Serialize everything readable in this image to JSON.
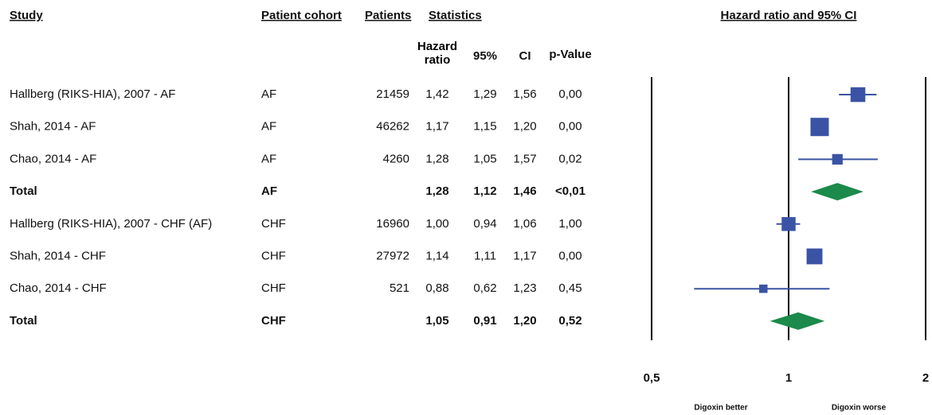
{
  "chart_data": {
    "type": "forest",
    "columns": [
      "Study",
      "Patient cohort",
      "Patients",
      "Statistics"
    ],
    "subheaders": [
      "Hazard ratio",
      "95%",
      "CI",
      "p-Value"
    ],
    "plot_title": "Hazard ratio and 95% CI",
    "footer_labels": [
      "Digoxin better",
      "Digoxin worse"
    ],
    "studies": [
      "Hallberg (RIKS-HIA), 2007 - AF",
      "Shah, 2014 - AF",
      "Chao, 2014 - AF",
      "Total",
      "Hallberg (RIKS-HIA), 2007 - CHF (AF)",
      "Shah, 2014 - CHF",
      "Chao, 2014 - CHF",
      "Total"
    ],
    "cohorts": [
      "AF",
      "AF",
      "AF",
      "AF",
      "CHF",
      "CHF",
      "CHF",
      "CHF"
    ],
    "patients": [
      21459,
      46262,
      4260,
      null,
      16960,
      27972,
      521,
      null
    ],
    "hazard_ratio": {
      "values": [
        1.42,
        1.17,
        1.28,
        1.28,
        1.0,
        1.14,
        0.88,
        1.05
      ],
      "value_labels": [
        "1,42",
        "1,17",
        "1,28",
        "1,28",
        "1,00",
        "1,14",
        "0,88",
        "1,05"
      ]
    },
    "ci_low": {
      "values": [
        1.29,
        1.15,
        1.05,
        1.12,
        0.94,
        1.11,
        0.62,
        0.91
      ],
      "value_labels": [
        "1,29",
        "1,15",
        "1,05",
        "1,12",
        "0,94",
        "1,11",
        "0,62",
        "0,91"
      ]
    },
    "ci_high": {
      "values": [
        1.56,
        1.2,
        1.57,
        1.46,
        1.06,
        1.17,
        1.23,
        1.2
      ],
      "value_labels": [
        "1,56",
        "1,20",
        "1,57",
        "1,46",
        "1,06",
        "1,17",
        "1,23",
        "1,20"
      ]
    },
    "p_value": {
      "values": [
        0.0,
        0.0,
        0.02,
        0.01,
        1.0,
        0.0,
        0.45,
        0.52
      ],
      "value_labels": [
        "0,00",
        "0,00",
        "0,02",
        "<0,01",
        "1,00",
        "0,00",
        "0,45",
        "0,52"
      ]
    },
    "xlim": [
      0.5,
      2
    ],
    "xticks": [
      {
        "value": 0.5,
        "label": "0,5"
      },
      1,
      2
    ],
    "log_x": true,
    "marker_color": "#3a53a4",
    "diamond_color": "#1b8a4a"
  }
}
